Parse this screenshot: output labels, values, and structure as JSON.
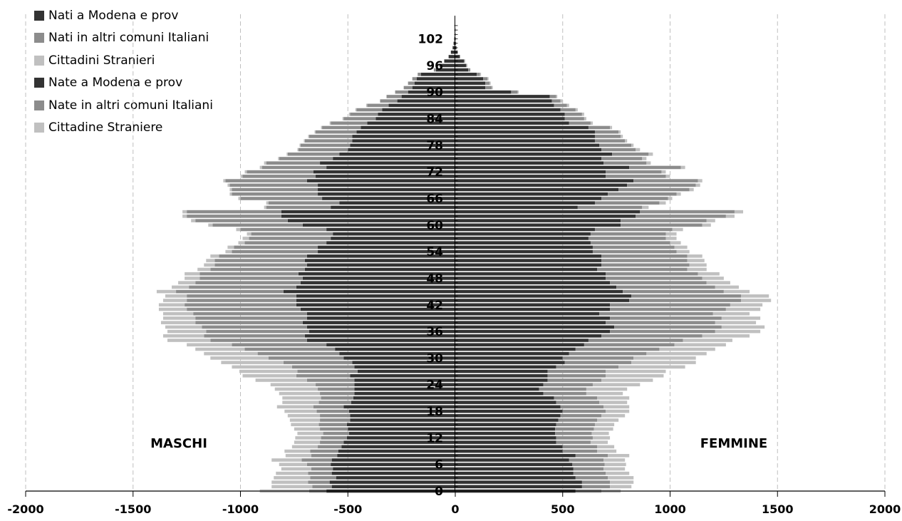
{
  "colors": {
    "born_local": "#333333",
    "born_italy": "#8c8c8c",
    "foreign": "#c0c0c0",
    "grid": "#bfbfbf"
  },
  "legend": [
    {
      "label": "Nati a Modena e prov",
      "color": "#333333"
    },
    {
      "label": "Nati in altri comuni Italiani",
      "color": "#8c8c8c"
    },
    {
      "label": "Cittadini Stranieri",
      "color": "#c0c0c0"
    },
    {
      "label": "Nate a Modena e prov",
      "color": "#333333"
    },
    {
      "label": "Nate in altri comuni Italiani",
      "color": "#8c8c8c"
    },
    {
      "label": "Cittadine Straniere",
      "color": "#c0c0c0"
    }
  ],
  "chart_data": {
    "type": "bar",
    "orientation": "horizontal",
    "stacked": true,
    "xlim": [
      -2000,
      2000
    ],
    "x_ticks": [
      -2000,
      -1500,
      -1000,
      -500,
      0,
      500,
      1000,
      1500,
      2000
    ],
    "y_tick_labels": [
      "0",
      "6",
      "12",
      "18",
      "24",
      "30",
      "36",
      "42",
      "48",
      "54",
      "60",
      "66",
      "72",
      "78",
      "84",
      "90",
      "96",
      "102"
    ],
    "age_range": [
      0,
      105
    ],
    "annotations": {
      "male": "MASCHI",
      "female": "FEMMINE"
    },
    "grid": "vertical dashed",
    "legend_position": "top-left",
    "series_order": [
      "Nati a Modena e prov",
      "Nati in altri comuni Italiani",
      "Cittadini Stranieri",
      "Nate a Modena e prov",
      "Nate in altri comuni Italiani",
      "Cittadine Straniere"
    ],
    "age": [
      0,
      1,
      2,
      3,
      4,
      5,
      6,
      7,
      8,
      9,
      10,
      11,
      12,
      13,
      14,
      15,
      16,
      17,
      18,
      19,
      20,
      21,
      22,
      23,
      24,
      25,
      26,
      27,
      28,
      29,
      30,
      31,
      32,
      33,
      34,
      35,
      36,
      37,
      38,
      39,
      40,
      41,
      42,
      43,
      44,
      45,
      46,
      47,
      48,
      49,
      50,
      51,
      52,
      53,
      54,
      55,
      56,
      57,
      58,
      59,
      60,
      61,
      62,
      63,
      64,
      65,
      66,
      67,
      68,
      69,
      70,
      71,
      72,
      73,
      74,
      75,
      76,
      77,
      78,
      79,
      80,
      81,
      82,
      83,
      84,
      85,
      86,
      87,
      88,
      89,
      90,
      91,
      92,
      93,
      94,
      95,
      96,
      97,
      98,
      99,
      100,
      101,
      102,
      103,
      104
    ],
    "males": {
      "nati_modena": [
        600,
        575,
        585,
        555,
        575,
        570,
        580,
        575,
        550,
        545,
        530,
        520,
        505,
        495,
        500,
        505,
        490,
        490,
        495,
        520,
        485,
        475,
        470,
        470,
        470,
        470,
        490,
        455,
        470,
        480,
        520,
        540,
        560,
        600,
        690,
        700,
        680,
        690,
        710,
        690,
        690,
        720,
        740,
        740,
        740,
        800,
        740,
        720,
        710,
        730,
        700,
        690,
        700,
        690,
        640,
        640,
        600,
        580,
        570,
        600,
        710,
        780,
        810,
        810,
        580,
        540,
        620,
        640,
        640,
        640,
        690,
        650,
        660,
        600,
        630,
        570,
        540,
        500,
        490,
        480,
        480,
        460,
        440,
        410,
        370,
        360,
        340,
        310,
        270,
        250,
        220,
        200,
        190,
        180,
        160,
        90,
        70,
        50,
        30,
        20,
        12,
        8,
        5,
        2,
        1
      ],
      "nati_italia": [
        80,
        90,
        100,
        120,
        110,
        100,
        110,
        140,
        120,
        130,
        110,
        110,
        120,
        120,
        130,
        130,
        140,
        140,
        150,
        140,
        150,
        150,
        160,
        170,
        180,
        220,
        250,
        280,
        290,
        320,
        350,
        380,
        420,
        440,
        450,
        470,
        480,
        490,
        500,
        520,
        530,
        530,
        520,
        510,
        510,
        500,
        500,
        490,
        480,
        460,
        440,
        430,
        420,
        410,
        400,
        390,
        380,
        380,
        380,
        400,
        420,
        430,
        440,
        440,
        300,
        330,
        380,
        400,
        400,
        410,
        380,
        340,
        310,
        300,
        250,
        250,
        240,
        230,
        230,
        220,
        200,
        190,
        180,
        170,
        150,
        130,
        120,
        100,
        80,
        70,
        60,
        40,
        30,
        20,
        15,
        10,
        5,
        3,
        2,
        1,
        1,
        0,
        0,
        0,
        0
      ],
      "stranieri": [
        230,
        190,
        170,
        170,
        150,
        140,
        130,
        140,
        120,
        120,
        120,
        120,
        120,
        120,
        120,
        130,
        140,
        150,
        150,
        170,
        170,
        180,
        190,
        200,
        210,
        240,
        250,
        270,
        280,
        290,
        270,
        250,
        230,
        210,
        200,
        190,
        180,
        170,
        160,
        150,
        140,
        130,
        120,
        110,
        100,
        90,
        80,
        80,
        70,
        70,
        60,
        50,
        40,
        40,
        30,
        30,
        30,
        30,
        20,
        20,
        20,
        20,
        20,
        20,
        10,
        10,
        10,
        10,
        10,
        10,
        10,
        10,
        10,
        10,
        10,
        5,
        5,
        5,
        5,
        5,
        5,
        5,
        5,
        5,
        5,
        5,
        5,
        5,
        0,
        0,
        0,
        0,
        0,
        0,
        0,
        0,
        0,
        0,
        0,
        0,
        0,
        0,
        0,
        0,
        0
      ]
    },
    "females": {
      "nate_modena": [
        560,
        590,
        590,
        560,
        550,
        550,
        545,
        530,
        560,
        500,
        500,
        470,
        470,
        465,
        465,
        470,
        480,
        490,
        500,
        490,
        470,
        460,
        410,
        390,
        410,
        430,
        430,
        430,
        470,
        510,
        500,
        530,
        560,
        600,
        620,
        680,
        720,
        740,
        700,
        720,
        670,
        720,
        720,
        810,
        820,
        780,
        750,
        720,
        700,
        700,
        660,
        680,
        680,
        680,
        640,
        640,
        630,
        620,
        630,
        650,
        770,
        770,
        840,
        860,
        570,
        650,
        680,
        710,
        760,
        800,
        830,
        700,
        700,
        810,
        690,
        680,
        730,
        680,
        670,
        650,
        650,
        650,
        620,
        530,
        510,
        510,
        490,
        460,
        450,
        440,
        260,
        140,
        140,
        130,
        100,
        60,
        50,
        40,
        20,
        10,
        5,
        3,
        2,
        1,
        1
      ],
      "nate_italia": [
        120,
        130,
        130,
        150,
        150,
        140,
        150,
        160,
        150,
        160,
        160,
        160,
        170,
        170,
        180,
        180,
        180,
        190,
        200,
        200,
        200,
        200,
        200,
        220,
        230,
        250,
        270,
        270,
        290,
        310,
        330,
        360,
        390,
        420,
        440,
        470,
        490,
        500,
        510,
        520,
        530,
        540,
        560,
        520,
        510,
        470,
        460,
        450,
        450,
        430,
        420,
        410,
        400,
        400,
        390,
        380,
        370,
        360,
        350,
        360,
        380,
        400,
        420,
        440,
        300,
        300,
        310,
        320,
        330,
        320,
        300,
        280,
        260,
        240,
        200,
        190,
        170,
        160,
        150,
        140,
        120,
        110,
        100,
        100,
        90,
        80,
        70,
        60,
        40,
        30,
        30,
        30,
        20,
        20,
        15,
        10,
        5,
        5,
        3,
        2,
        1,
        1,
        0,
        0,
        0
      ],
      "straniere": [
        90,
        100,
        110,
        120,
        110,
        100,
        100,
        100,
        100,
        90,
        80,
        80,
        80,
        80,
        90,
        90,
        100,
        110,
        110,
        120,
        130,
        150,
        170,
        190,
        220,
        240,
        270,
        280,
        310,
        300,
        290,
        280,
        260,
        240,
        230,
        220,
        210,
        200,
        190,
        180,
        170,
        160,
        150,
        140,
        130,
        120,
        110,
        110,
        100,
        100,
        90,
        80,
        80,
        70,
        60,
        60,
        50,
        50,
        50,
        50,
        40,
        40,
        40,
        40,
        30,
        30,
        20,
        20,
        20,
        20,
        20,
        20,
        20,
        20,
        20,
        20,
        20,
        20,
        10,
        10,
        10,
        10,
        10,
        10,
        10,
        10,
        10,
        10,
        10,
        5,
        5,
        5,
        5,
        5,
        5,
        0,
        0,
        0,
        0,
        0,
        0,
        0,
        0,
        0,
        0
      ]
    }
  }
}
